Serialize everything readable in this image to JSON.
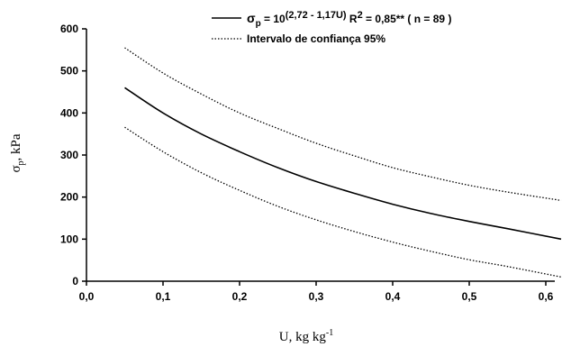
{
  "chart_data": {
    "type": "line",
    "title": "",
    "xlabel": "U, kg kg",
    "xlabel_superscript": "-1",
    "ylabel_symbol": "σ",
    "ylabel_subscript": "p",
    "ylabel_unit": ", kPa",
    "xlim": [
      0.0,
      0.65
    ],
    "ylim": [
      0,
      600
    ],
    "x_ticks": [
      0.0,
      0.1,
      0.2,
      0.3,
      0.4,
      0.5,
      0.6
    ],
    "x_tick_labels": [
      "0,0",
      "0,1",
      "0,2",
      "0,3",
      "0,4",
      "0,5",
      "0,6"
    ],
    "y_ticks": [
      0,
      100,
      200,
      300,
      400,
      500,
      600
    ],
    "y_tick_labels": [
      "0",
      "100",
      "200",
      "300",
      "400",
      "500",
      "600"
    ],
    "grid": false,
    "legend_position": "top-right",
    "x": [
      0.05,
      0.1,
      0.15,
      0.2,
      0.25,
      0.3,
      0.35,
      0.4,
      0.45,
      0.5,
      0.55,
      0.62
    ],
    "series": [
      {
        "name": "upper",
        "style": "dotted",
        "values": [
          555,
          495,
          445,
          400,
          363,
          328,
          298,
          270,
          248,
          228,
          212,
          192
        ]
      },
      {
        "name": "fit",
        "style": "solid",
        "values": [
          460,
          400,
          350,
          308,
          270,
          237,
          209,
          183,
          161,
          142,
          125,
          100
        ]
      },
      {
        "name": "lower",
        "style": "dotted",
        "values": [
          366,
          308,
          258,
          216,
          178,
          146,
          118,
          93,
          71,
          51,
          35,
          10
        ]
      }
    ],
    "legend": [
      {
        "style": "solid",
        "label_prefix": "σ",
        "label_sub": "p",
        "label_eq": " = 10",
        "label_exp": "(2,72 - 1,17U)",
        "label_r": "  R",
        "label_r_exp": "2",
        "label_tail": " = 0,85** ( n = 89 )"
      },
      {
        "style": "dotted",
        "label": "Intervalo de confiança 95%"
      }
    ]
  }
}
